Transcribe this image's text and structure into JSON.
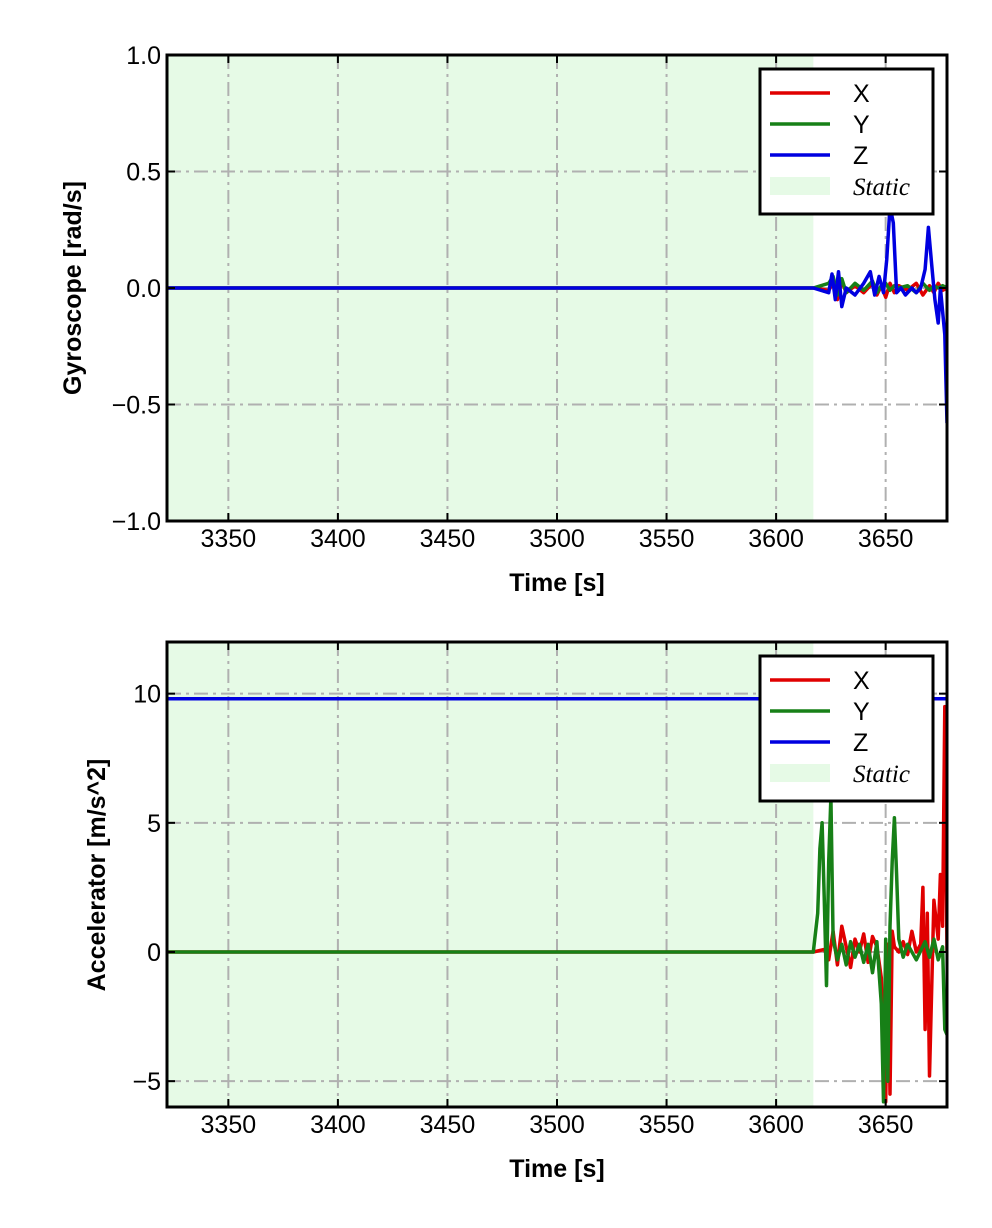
{
  "chart_data": [
    {
      "type": "line",
      "xlabel": "Time [s]",
      "ylabel": "Gyroscope [rad/s]",
      "xlim": [
        3322,
        3678
      ],
      "ylim": [
        -1.0,
        1.0
      ],
      "x_ticks": [
        3350,
        3400,
        3450,
        3500,
        3550,
        3600,
        3650
      ],
      "x_tick_labels": [
        "3350",
        "3400",
        "3450",
        "3500",
        "3550",
        "3600",
        "3650"
      ],
      "y_ticks": [
        -1.0,
        -0.5,
        0.0,
        0.5,
        1.0
      ],
      "y_tick_labels": [
        "−1.0",
        "−0.5",
        "0.0",
        "0.5",
        "1.0"
      ],
      "grid": true,
      "legend_position": "top-right",
      "static_region": {
        "label": "Static",
        "x_start": 3322,
        "x_end": 3617,
        "color": "#e6fae6"
      },
      "series": [
        {
          "name": "X",
          "color": "#e00000",
          "x": [
            3322,
            3617,
            3624,
            3626,
            3628,
            3630,
            3632,
            3636,
            3640,
            3644,
            3646,
            3648,
            3650,
            3652,
            3654,
            3656,
            3660,
            3664,
            3667,
            3670,
            3672,
            3674,
            3676,
            3678
          ],
          "y": [
            0.0,
            0.0,
            -0.01,
            0.02,
            -0.05,
            0.03,
            -0.02,
            0.01,
            -0.02,
            0.02,
            -0.03,
            0.01,
            -0.04,
            0.02,
            -0.02,
            0.01,
            -0.01,
            0.02,
            -0.03,
            0.01,
            -0.02,
            0.02,
            -0.01,
            0.0
          ]
        },
        {
          "name": "Y",
          "color": "#178017",
          "x": [
            3322,
            3617,
            3624,
            3626,
            3628,
            3630,
            3632,
            3636,
            3640,
            3644,
            3646,
            3648,
            3650,
            3652,
            3654,
            3656,
            3660,
            3664,
            3667,
            3670,
            3672,
            3674,
            3676,
            3678
          ],
          "y": [
            0.0,
            0.0,
            0.02,
            0.05,
            -0.03,
            0.04,
            -0.02,
            0.02,
            -0.01,
            0.03,
            -0.02,
            0.01,
            0.02,
            -0.01,
            0.01,
            0.0,
            0.01,
            -0.02,
            0.02,
            -0.01,
            0.01,
            0.0,
            0.01,
            0.0
          ]
        },
        {
          "name": "Z",
          "color": "#0000e0",
          "x": [
            3322,
            3617,
            3624,
            3625.5,
            3627,
            3628.5,
            3630,
            3632,
            3636,
            3640,
            3643,
            3645,
            3647,
            3649,
            3650.5,
            3652,
            3653.5,
            3655,
            3657,
            3659,
            3662,
            3664,
            3666,
            3668,
            3669.5,
            3671,
            3672.5,
            3674,
            3675,
            3676,
            3677,
            3678
          ],
          "y": [
            0.0,
            0.0,
            -0.02,
            0.06,
            -0.05,
            0.07,
            -0.08,
            0.0,
            -0.03,
            0.02,
            0.07,
            -0.03,
            0.05,
            -0.02,
            0.12,
            0.35,
            0.28,
            -0.02,
            0.0,
            -0.03,
            0.0,
            -0.02,
            0.0,
            0.08,
            0.26,
            0.1,
            -0.05,
            -0.15,
            0.0,
            -0.1,
            -0.2,
            -0.58
          ]
        }
      ]
    },
    {
      "type": "line",
      "xlabel": "Time [s]",
      "ylabel": "Accelerator [m/s^2]",
      "xlim": [
        3322,
        3678
      ],
      "ylim": [
        -6,
        12
      ],
      "x_ticks": [
        3350,
        3400,
        3450,
        3500,
        3550,
        3600,
        3650
      ],
      "x_tick_labels": [
        "3350",
        "3400",
        "3450",
        "3500",
        "3550",
        "3600",
        "3650"
      ],
      "y_ticks": [
        -5,
        0,
        5,
        10
      ],
      "y_tick_labels": [
        "−5",
        "0",
        "5",
        "10"
      ],
      "grid": true,
      "legend_position": "top-right",
      "static_region": {
        "label": "Static",
        "x_start": 3322,
        "x_end": 3617,
        "color": "#e6fae6"
      },
      "series": [
        {
          "name": "X",
          "color": "#e00000",
          "x": [
            3322,
            3617,
            3622,
            3624,
            3626,
            3628,
            3630,
            3632,
            3634,
            3636,
            3638,
            3640,
            3642,
            3644,
            3646,
            3648,
            3650,
            3651,
            3652,
            3653,
            3654,
            3656,
            3658,
            3660,
            3662,
            3664,
            3666,
            3667,
            3668,
            3669,
            3670,
            3672,
            3674,
            3675,
            3676,
            3677,
            3678
          ],
          "y": [
            0.0,
            0.0,
            0.1,
            -0.3,
            0.8,
            -0.5,
            1.0,
            0.2,
            -0.6,
            0.5,
            0.0,
            0.7,
            -0.4,
            0.6,
            0.2,
            -1.0,
            -5.8,
            0.3,
            -5.5,
            0.8,
            0.2,
            0.0,
            0.4,
            -0.1,
            0.8,
            0.0,
            0.3,
            2.5,
            -3.0,
            1.5,
            -4.8,
            2.0,
            0.5,
            3.0,
            1.0,
            9.5,
            0.0
          ]
        },
        {
          "name": "Y",
          "color": "#178017",
          "x": [
            3322,
            3617,
            3619,
            3620,
            3621,
            3622,
            3623,
            3624,
            3625,
            3626,
            3628,
            3630,
            3632,
            3634,
            3636,
            3638,
            3640,
            3642,
            3644,
            3646,
            3648,
            3649,
            3650,
            3651,
            3652,
            3653,
            3654,
            3655,
            3656,
            3658,
            3660,
            3664,
            3668,
            3670,
            3672,
            3674,
            3676,
            3677,
            3678
          ],
          "y": [
            0.0,
            0.0,
            1.5,
            4.0,
            5.0,
            2.0,
            -1.3,
            3.5,
            6.0,
            0.5,
            -0.3,
            0.3,
            -0.5,
            0.4,
            -0.2,
            0.3,
            -0.4,
            0.3,
            -0.8,
            0.4,
            -2.0,
            -5.8,
            0.5,
            -5.0,
            1.0,
            3.5,
            5.2,
            3.0,
            0.5,
            -0.2,
            0.3,
            -0.3,
            0.4,
            -0.2,
            0.5,
            -0.3,
            0.2,
            -3.0,
            -3.2
          ]
        },
        {
          "name": "Z",
          "color": "#0000e0",
          "x": [
            3322,
            3600,
            3617,
            3630,
            3650,
            3670,
            3678
          ],
          "y": [
            9.8,
            9.8,
            9.8,
            9.8,
            9.8,
            9.8,
            9.8
          ]
        }
      ]
    }
  ]
}
